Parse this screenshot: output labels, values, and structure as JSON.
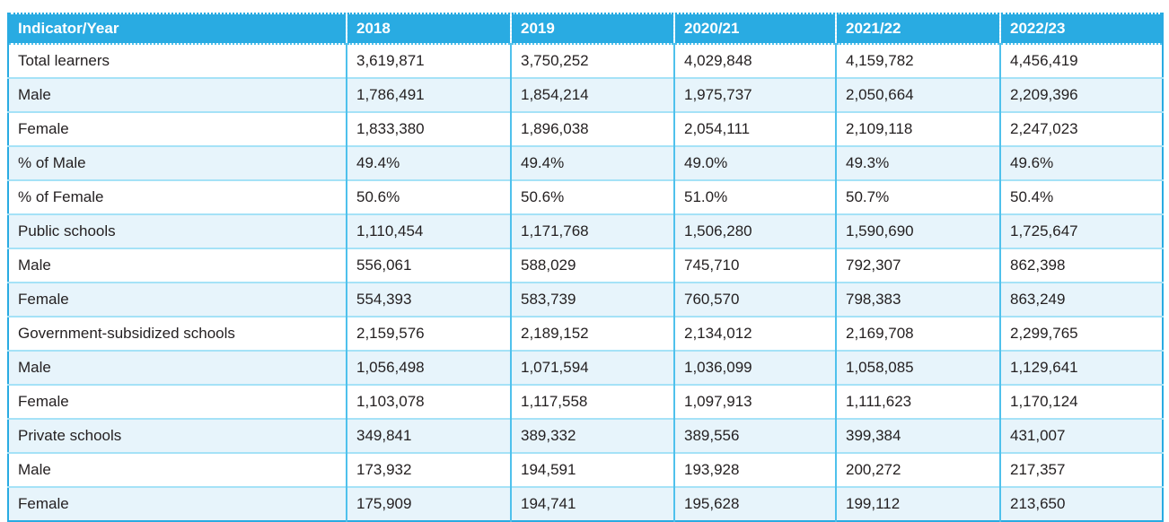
{
  "table": {
    "columns": [
      "Indicator/Year",
      "2018",
      "2019",
      "2020/21",
      "2021/22",
      "2022/23"
    ],
    "rows": [
      {
        "indicator": "Total learners",
        "values": [
          "3,619,871",
          "3,750,252",
          "4,029,848",
          "4,159,782",
          "4,456,419"
        ]
      },
      {
        "indicator": "Male",
        "values": [
          "1,786,491",
          "1,854,214",
          "1,975,737",
          "2,050,664",
          "2,209,396"
        ]
      },
      {
        "indicator": "Female",
        "values": [
          "1,833,380",
          "1,896,038",
          "2,054,111",
          "2,109,118",
          "2,247,023"
        ]
      },
      {
        "indicator": "% of Male",
        "values": [
          "49.4%",
          "49.4%",
          "49.0%",
          "49.3%",
          "49.6%"
        ]
      },
      {
        "indicator": "% of Female",
        "values": [
          "50.6%",
          "50.6%",
          "51.0%",
          "50.7%",
          "50.4%"
        ]
      },
      {
        "indicator": "Public schools",
        "values": [
          "1,110,454",
          "1,171,768",
          "1,506,280",
          "1,590,690",
          "1,725,647"
        ]
      },
      {
        "indicator": "Male",
        "values": [
          "556,061",
          "588,029",
          "745,710",
          "792,307",
          "862,398"
        ]
      },
      {
        "indicator": "Female",
        "values": [
          "554,393",
          "583,739",
          "760,570",
          "798,383",
          "863,249"
        ]
      },
      {
        "indicator": "Government-subsidized schools",
        "values": [
          "2,159,576",
          "2,189,152",
          "2,134,012",
          "2,169,708",
          "2,299,765"
        ]
      },
      {
        "indicator": "Male",
        "values": [
          "1,056,498",
          "1,071,594",
          "1,036,099",
          "1,058,085",
          "1,129,641"
        ]
      },
      {
        "indicator": "Female",
        "values": [
          "1,103,078",
          "1,117,558",
          "1,097,913",
          "1,111,623",
          "1,170,124"
        ]
      },
      {
        "indicator": "Private schools",
        "values": [
          "349,841",
          "389,332",
          "389,556",
          "399,384",
          "431,007"
        ]
      },
      {
        "indicator": "Male",
        "values": [
          "173,932",
          "194,591",
          "193,928",
          "200,272",
          "217,357"
        ]
      },
      {
        "indicator": "Female",
        "values": [
          "175,909",
          "194,741",
          "195,628",
          "199,112",
          "213,650"
        ]
      }
    ],
    "colors": {
      "header_bg": "#29ABE2",
      "header_text": "#FFFFFF",
      "body_text": "#231F20",
      "row_bg": "#FFFFFF",
      "row_alt_bg": "#E7F4FB",
      "outer_border": "#29ABE2",
      "column_border": "#4FC1EC",
      "row_border": "#A5E2F7"
    }
  }
}
